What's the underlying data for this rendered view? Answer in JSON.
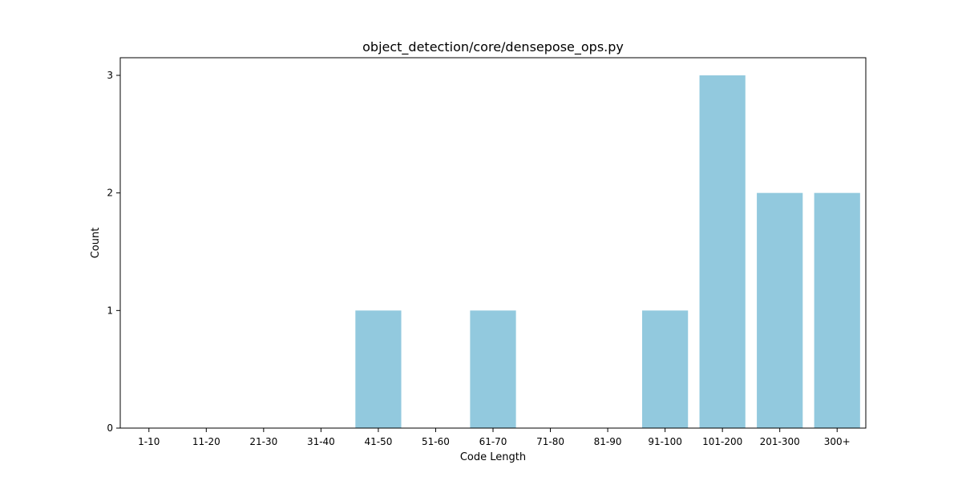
{
  "chart_data": {
    "type": "bar",
    "title": "object_detection/core/densepose_ops.py",
    "xlabel": "Code Length",
    "ylabel": "Count",
    "categories": [
      "1-10",
      "11-20",
      "21-30",
      "31-40",
      "41-50",
      "51-60",
      "61-70",
      "71-80",
      "81-90",
      "91-100",
      "101-200",
      "201-300",
      "300+"
    ],
    "values": [
      0,
      0,
      0,
      0,
      1,
      0,
      1,
      0,
      0,
      1,
      3,
      2,
      2
    ],
    "ylim": [
      0,
      3.15
    ],
    "yticks": [
      0,
      1,
      2,
      3
    ],
    "bar_color": "#92c9de",
    "grid": false,
    "legend": "none"
  }
}
